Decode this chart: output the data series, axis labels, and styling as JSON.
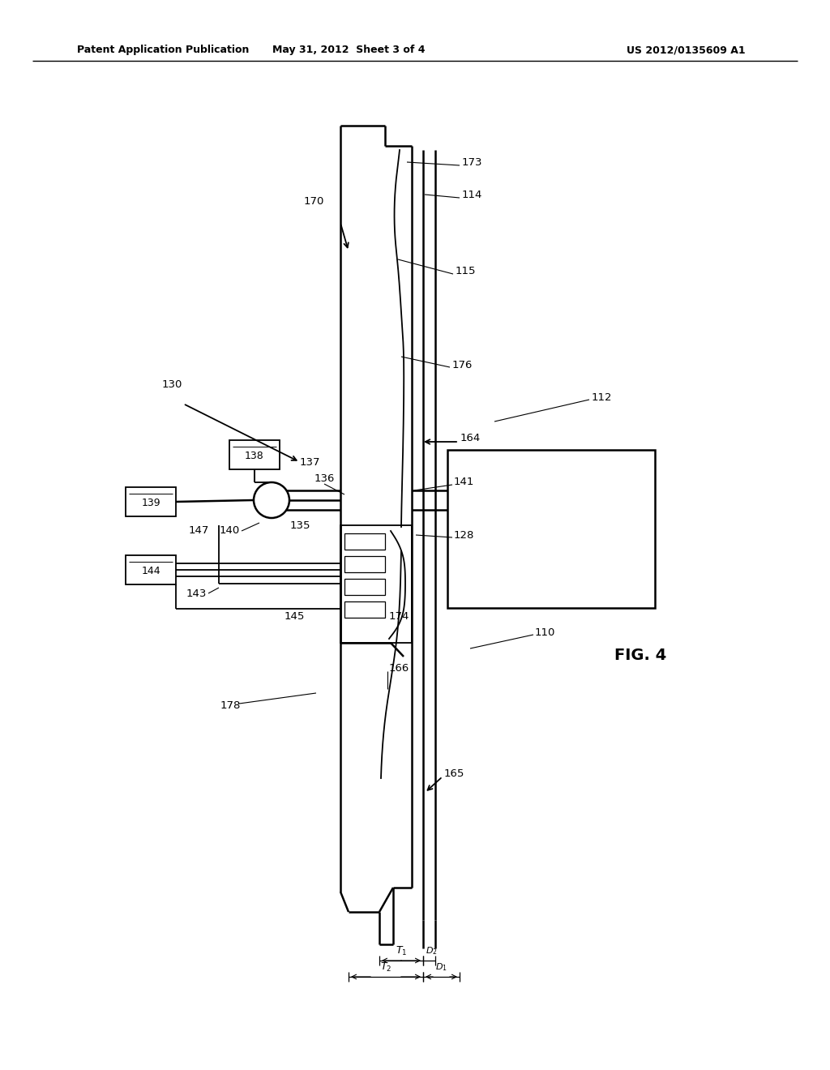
{
  "bg_color": "#ffffff",
  "title_left": "Patent Application Publication",
  "title_mid": "May 31, 2012  Sheet 3 of 4",
  "title_right": "US 2012/0135609 A1",
  "fig_label": "FIG. 4",
  "lw": 1.3,
  "lw_thick": 1.8
}
